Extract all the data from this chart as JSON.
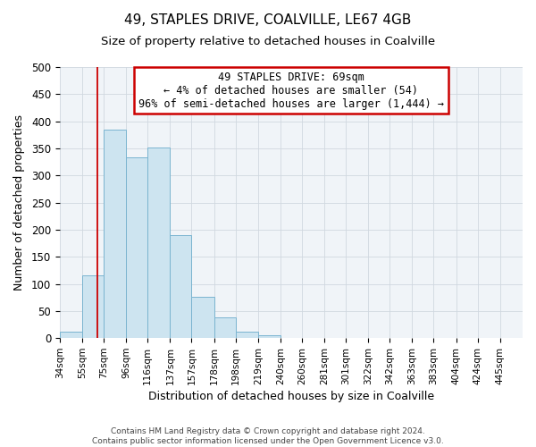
{
  "title": "49, STAPLES DRIVE, COALVILLE, LE67 4GB",
  "subtitle": "Size of property relative to detached houses in Coalville",
  "xlabel": "Distribution of detached houses by size in Coalville",
  "ylabel": "Number of detached properties",
  "bar_labels": [
    "34sqm",
    "55sqm",
    "75sqm",
    "96sqm",
    "116sqm",
    "137sqm",
    "157sqm",
    "178sqm",
    "198sqm",
    "219sqm",
    "240sqm",
    "260sqm",
    "281sqm",
    "301sqm",
    "322sqm",
    "342sqm",
    "363sqm",
    "383sqm",
    "404sqm",
    "424sqm",
    "445sqm"
  ],
  "bar_values": [
    12,
    115,
    385,
    333,
    352,
    190,
    76,
    38,
    12,
    5,
    0,
    0,
    1,
    0,
    0,
    0,
    0,
    0,
    0,
    0,
    1
  ],
  "bar_color": "#cde4f0",
  "bar_edge_color": "#7ab4d0",
  "ylim": [
    0,
    500
  ],
  "yticks": [
    0,
    50,
    100,
    150,
    200,
    250,
    300,
    350,
    400,
    450,
    500
  ],
  "annotation_line1": "49 STAPLES DRIVE: 69sqm",
  "annotation_line2": "← 4% of detached houses are smaller (54)",
  "annotation_line3": "96% of semi-detached houses are larger (1,444) →",
  "annotation_box_color": "#ffffff",
  "annotation_box_edge_color": "#cc0000",
  "property_vline_color": "#cc0000",
  "footer_line1": "Contains HM Land Registry data © Crown copyright and database right 2024.",
  "footer_line2": "Contains public sector information licensed under the Open Government Licence v3.0.",
  "bin_edges": [
    34,
    55,
    75,
    96,
    116,
    137,
    157,
    178,
    198,
    219,
    240,
    260,
    281,
    301,
    322,
    342,
    363,
    383,
    404,
    424,
    445,
    466
  ],
  "figsize": [
    6.0,
    5.0
  ],
  "dpi": 100
}
